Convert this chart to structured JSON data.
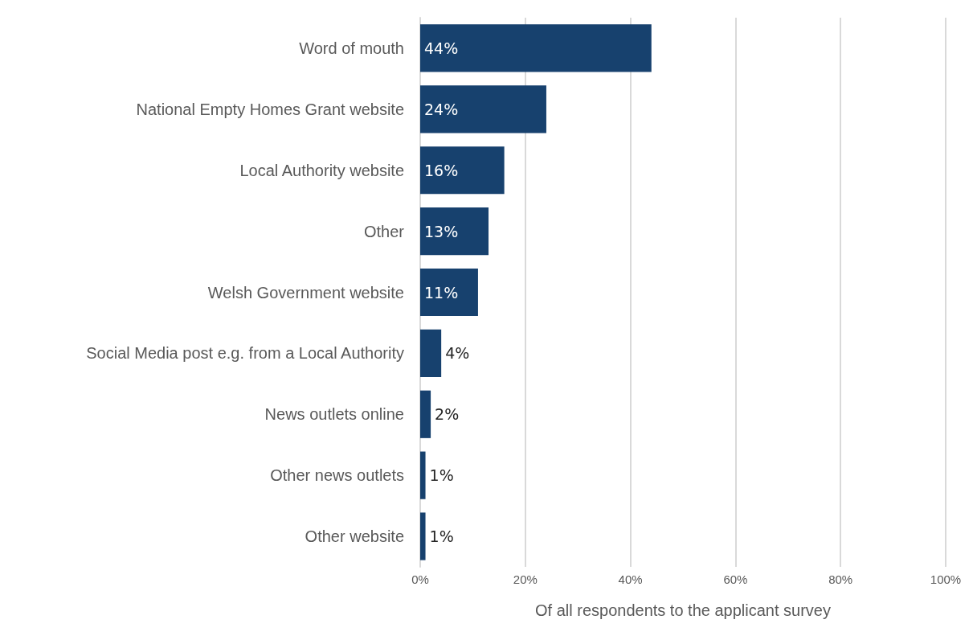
{
  "chart_data": {
    "type": "bar",
    "orientation": "horizontal",
    "xlabel": "Of all respondents to the applicant survey",
    "categories": [
      "Word of mouth",
      "National Empty Homes Grant website",
      "Local Authority website",
      "Other",
      "Welsh Government website",
      "Social Media post e.g. from a Local Authority",
      "News outlets online",
      "Other news outlets",
      "Other website"
    ],
    "values": [
      44,
      24,
      16,
      13,
      11,
      4,
      2,
      1,
      1
    ],
    "value_labels": [
      "44%",
      "24%",
      "16%",
      "13%",
      "11%",
      "4%",
      "2%",
      "1%",
      "1%"
    ],
    "color": "#17416e",
    "xlim": [
      0,
      100
    ],
    "xticks": [
      {
        "value": 0,
        "label": "0%"
      },
      {
        "value": 20,
        "label": "20%"
      },
      {
        "value": 40,
        "label": "40%"
      },
      {
        "value": 60,
        "label": "60%"
      },
      {
        "value": 80,
        "label": "80%"
      },
      {
        "value": 100,
        "label": "100%"
      }
    ],
    "grid": "x"
  }
}
